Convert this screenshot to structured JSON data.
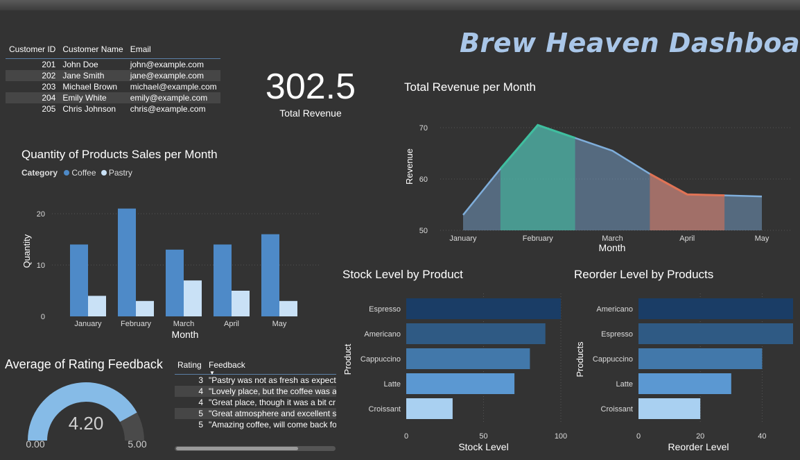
{
  "dashboard": {
    "title": "Brew Heaven Dashboard"
  },
  "customers": {
    "headers": [
      "Customer ID",
      "Customer Name",
      "Email"
    ],
    "rows": [
      [
        "201",
        "John Doe",
        "john@example.com"
      ],
      [
        "202",
        "Jane Smith",
        "jane@example.com"
      ],
      [
        "203",
        "Michael Brown",
        "michael@example.com"
      ],
      [
        "204",
        "Emily White",
        "emily@example.com"
      ],
      [
        "205",
        "Chris Johnson",
        "chris@example.com"
      ]
    ]
  },
  "kpi": {
    "value": "302.5",
    "label": "Total Revenue"
  },
  "gauge": {
    "title": "Average of Rating Feedback",
    "value": "4.20",
    "min": "0.00",
    "max": "5.00",
    "fraction": 0.84,
    "color": "#86bbe7"
  },
  "feedback": {
    "headers": [
      "Rating",
      "Feedback"
    ],
    "rows": [
      [
        "3",
        "\"Pastry was not as fresh as expect"
      ],
      [
        "4",
        "\"Lovely place, but the coffee was a"
      ],
      [
        "4",
        "\"Great place, though it was a bit cr"
      ],
      [
        "5",
        "\"Great atmosphere and excellent s"
      ],
      [
        "5",
        "\"Amazing coffee, will come back fo"
      ]
    ]
  },
  "chart_data": [
    {
      "type": "bar",
      "title": "Quantity of Products Sales per Month",
      "legend_title": "Category",
      "categories": [
        "January",
        "February",
        "March",
        "April",
        "May"
      ],
      "series": [
        {
          "name": "Coffee",
          "values": [
            14,
            21,
            13,
            14,
            16
          ],
          "color": "#4e8ac8"
        },
        {
          "name": "Pastry",
          "values": [
            4,
            3,
            7,
            5,
            3
          ],
          "color": "#c9e1f6"
        }
      ],
      "xlabel": "Month",
      "ylabel": "Quantity",
      "yticks": [
        "0",
        "10",
        "20"
      ],
      "ylim": [
        0,
        23
      ],
      "grid": true
    },
    {
      "type": "area",
      "title": "Total Revenue per Month",
      "categories": [
        "January",
        "February",
        "March",
        "April",
        "May"
      ],
      "x": [
        0,
        0.5,
        1,
        1.5,
        2,
        2.5,
        3,
        3.5,
        4
      ],
      "values": [
        53,
        62,
        70.5,
        68,
        65.5,
        61,
        57,
        56.8,
        56.6
      ],
      "highlight_segments": [
        {
          "from": 0.5,
          "to": 1.5,
          "color": "#3fbf9f"
        },
        {
          "from": 2.5,
          "to": 3.5,
          "color": "#e07355"
        }
      ],
      "base_color": "#7faedb",
      "xlabel": "Month",
      "ylabel": "Revenue",
      "yticks": [
        "50",
        "60",
        "70"
      ],
      "ylim": [
        50,
        72
      ],
      "grid": true
    },
    {
      "type": "bar",
      "orientation": "horizontal",
      "title": "Stock Level by Product",
      "categories": [
        "Espresso",
        "Americano",
        "Cappuccino",
        "Latte",
        "Croissant"
      ],
      "values": [
        100,
        90,
        80,
        70,
        30
      ],
      "colors": [
        "#1a3d66",
        "#2f5a84",
        "#4278aa",
        "#5b98d2",
        "#a9d0f1"
      ],
      "xlabel": "Stock Level",
      "ylabel": "Product",
      "xticks": [
        "0",
        "50",
        "100"
      ],
      "xlim": [
        0,
        100
      ],
      "grid": true
    },
    {
      "type": "bar",
      "orientation": "horizontal",
      "title": "Reorder Level by Products",
      "categories": [
        "Americano",
        "Espresso",
        "Cappuccino",
        "Latte",
        "Croissant"
      ],
      "values": [
        50,
        50,
        40,
        30,
        20
      ],
      "colors": [
        "#1a3d66",
        "#2f5a84",
        "#4278aa",
        "#5b98d2",
        "#a9d0f1"
      ],
      "xlabel": "Reorder Level",
      "ylabel": "Products",
      "xticks": [
        "0",
        "20",
        "40"
      ],
      "xlim": [
        0,
        50
      ],
      "grid": true
    }
  ]
}
